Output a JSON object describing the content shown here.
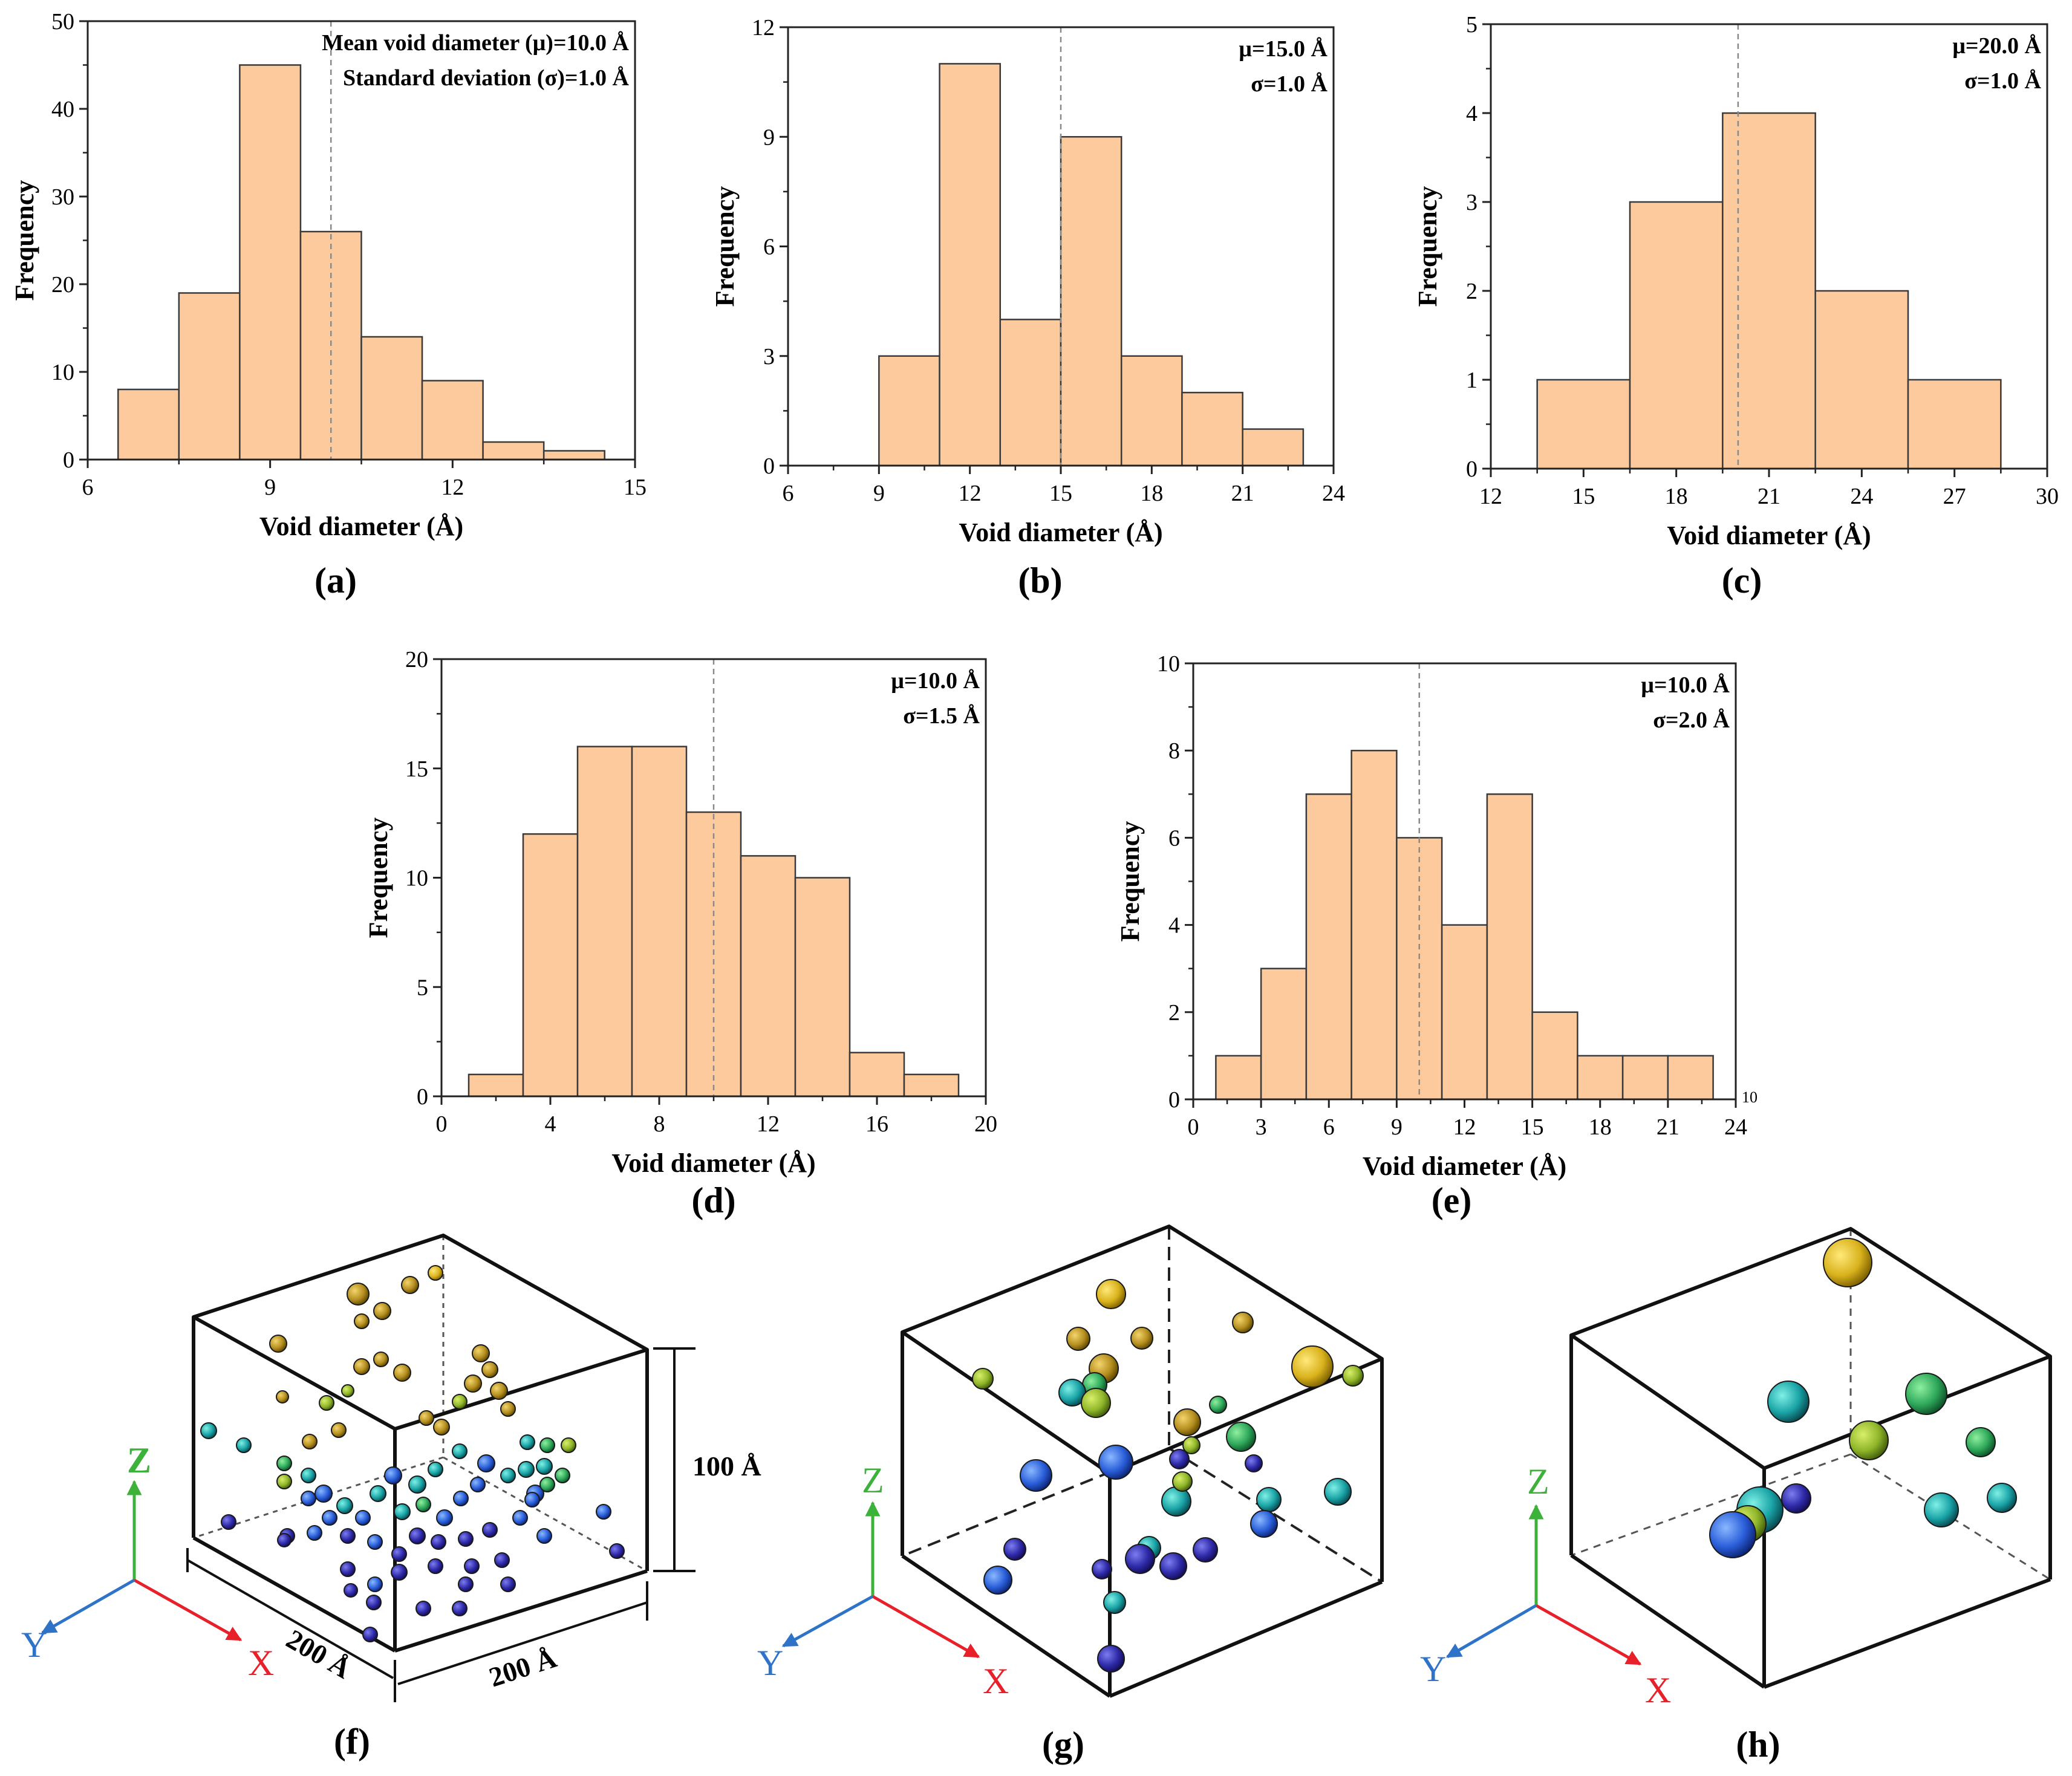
{
  "figure": {
    "panel_labels": [
      "(a)",
      "(b)",
      "(c)",
      "(d)",
      "(e)",
      "(f)",
      "(g)",
      "(h)"
    ],
    "axis_names": {
      "x": "X",
      "y": "Y",
      "z": "Z"
    },
    "box_dimensions": {
      "height": "100 Å",
      "depth": "200 Å",
      "width": "200 Å"
    }
  },
  "colors": {
    "bar_fill": "#FDCA9E",
    "bar_edge": "#3a3a3a",
    "axis_x": "#E8202A",
    "axis_y": "#2F73C9",
    "axis_z": "#3DB23B",
    "mean_line": "#8a8a8a"
  },
  "chart_data": [
    {
      "id": "a",
      "type": "bar",
      "xlabel": "Void diameter (Å)",
      "ylabel": "Frequency",
      "xlim": [
        6,
        15
      ],
      "ylim": [
        0,
        50
      ],
      "xticks": [
        6,
        9,
        12,
        15
      ],
      "yticks": [
        0,
        10,
        20,
        30,
        40,
        50
      ],
      "bin_edges": [
        6.5,
        7.5,
        8.5,
        9.5,
        10.5,
        11.5,
        12.5,
        13.5,
        14.5
      ],
      "values": [
        8,
        19,
        45,
        26,
        14,
        9,
        2,
        1
      ],
      "mean": 10.0,
      "annotations": [
        "Mean void diameter (μ)=10.0 Å",
        "Standard deviation (σ)=1.0 Å"
      ]
    },
    {
      "id": "b",
      "type": "bar",
      "xlabel": "Void diameter (Å)",
      "ylabel": "Frequency",
      "xlim": [
        6,
        24
      ],
      "ylim": [
        0,
        12
      ],
      "xticks": [
        6,
        9,
        12,
        15,
        18,
        21,
        24
      ],
      "yticks": [
        0,
        3,
        6,
        9,
        12
      ],
      "bin_edges": [
        9,
        11,
        13,
        15,
        17,
        19,
        21,
        23
      ],
      "values": [
        3,
        11,
        4,
        9,
        3,
        2,
        1
      ],
      "mean": 15.0,
      "annotations": [
        "μ=15.0 Å",
        "σ=1.0 Å"
      ]
    },
    {
      "id": "c",
      "type": "bar",
      "xlabel": "Void diameter (Å)",
      "ylabel": "Frequency",
      "xlim": [
        12,
        30
      ],
      "ylim": [
        0,
        5
      ],
      "xticks": [
        12,
        15,
        18,
        21,
        24,
        27,
        30
      ],
      "yticks": [
        0,
        1,
        2,
        3,
        4,
        5
      ],
      "bin_edges": [
        13.5,
        16.5,
        19.5,
        22.5,
        25.5,
        28.5
      ],
      "values": [
        1,
        3,
        4,
        2,
        1
      ],
      "mean": 20.0,
      "annotations": [
        "μ=20.0 Å",
        "σ=1.0 Å"
      ]
    },
    {
      "id": "d",
      "type": "bar",
      "xlabel": "Void diameter (Å)",
      "ylabel": "Frequency",
      "xlim": [
        0,
        20
      ],
      "ylim": [
        0,
        20
      ],
      "xticks": [
        0,
        4,
        8,
        12,
        16,
        20
      ],
      "yticks": [
        0,
        5,
        10,
        15,
        20
      ],
      "bin_edges": [
        1,
        3,
        5,
        7,
        9,
        11,
        13,
        15,
        17,
        19
      ],
      "values": [
        1,
        12,
        16,
        16,
        13,
        11,
        10,
        2,
        1
      ],
      "mean": 10.0,
      "annotations": [
        "μ=10.0 Å",
        "σ=1.5 Å"
      ]
    },
    {
      "id": "e",
      "type": "bar",
      "xlabel": "Void diameter (Å)",
      "ylabel": "Frequency",
      "xlim": [
        0,
        24
      ],
      "ylim": [
        0,
        10
      ],
      "xticks": [
        0,
        3,
        6,
        9,
        12,
        15,
        18,
        21,
        24
      ],
      "yticks": [
        0,
        2,
        4,
        6,
        8,
        10
      ],
      "bin_edges": [
        1,
        3,
        5,
        7,
        9,
        11,
        13,
        15,
        17,
        19,
        21,
        23
      ],
      "values": [
        1,
        3,
        7,
        8,
        6,
        4,
        7,
        2,
        1,
        1,
        1
      ],
      "mean": 10.0,
      "annotations": [
        "μ=10.0 Å",
        "σ=2.0 Å"
      ],
      "stray_label": "10"
    }
  ]
}
